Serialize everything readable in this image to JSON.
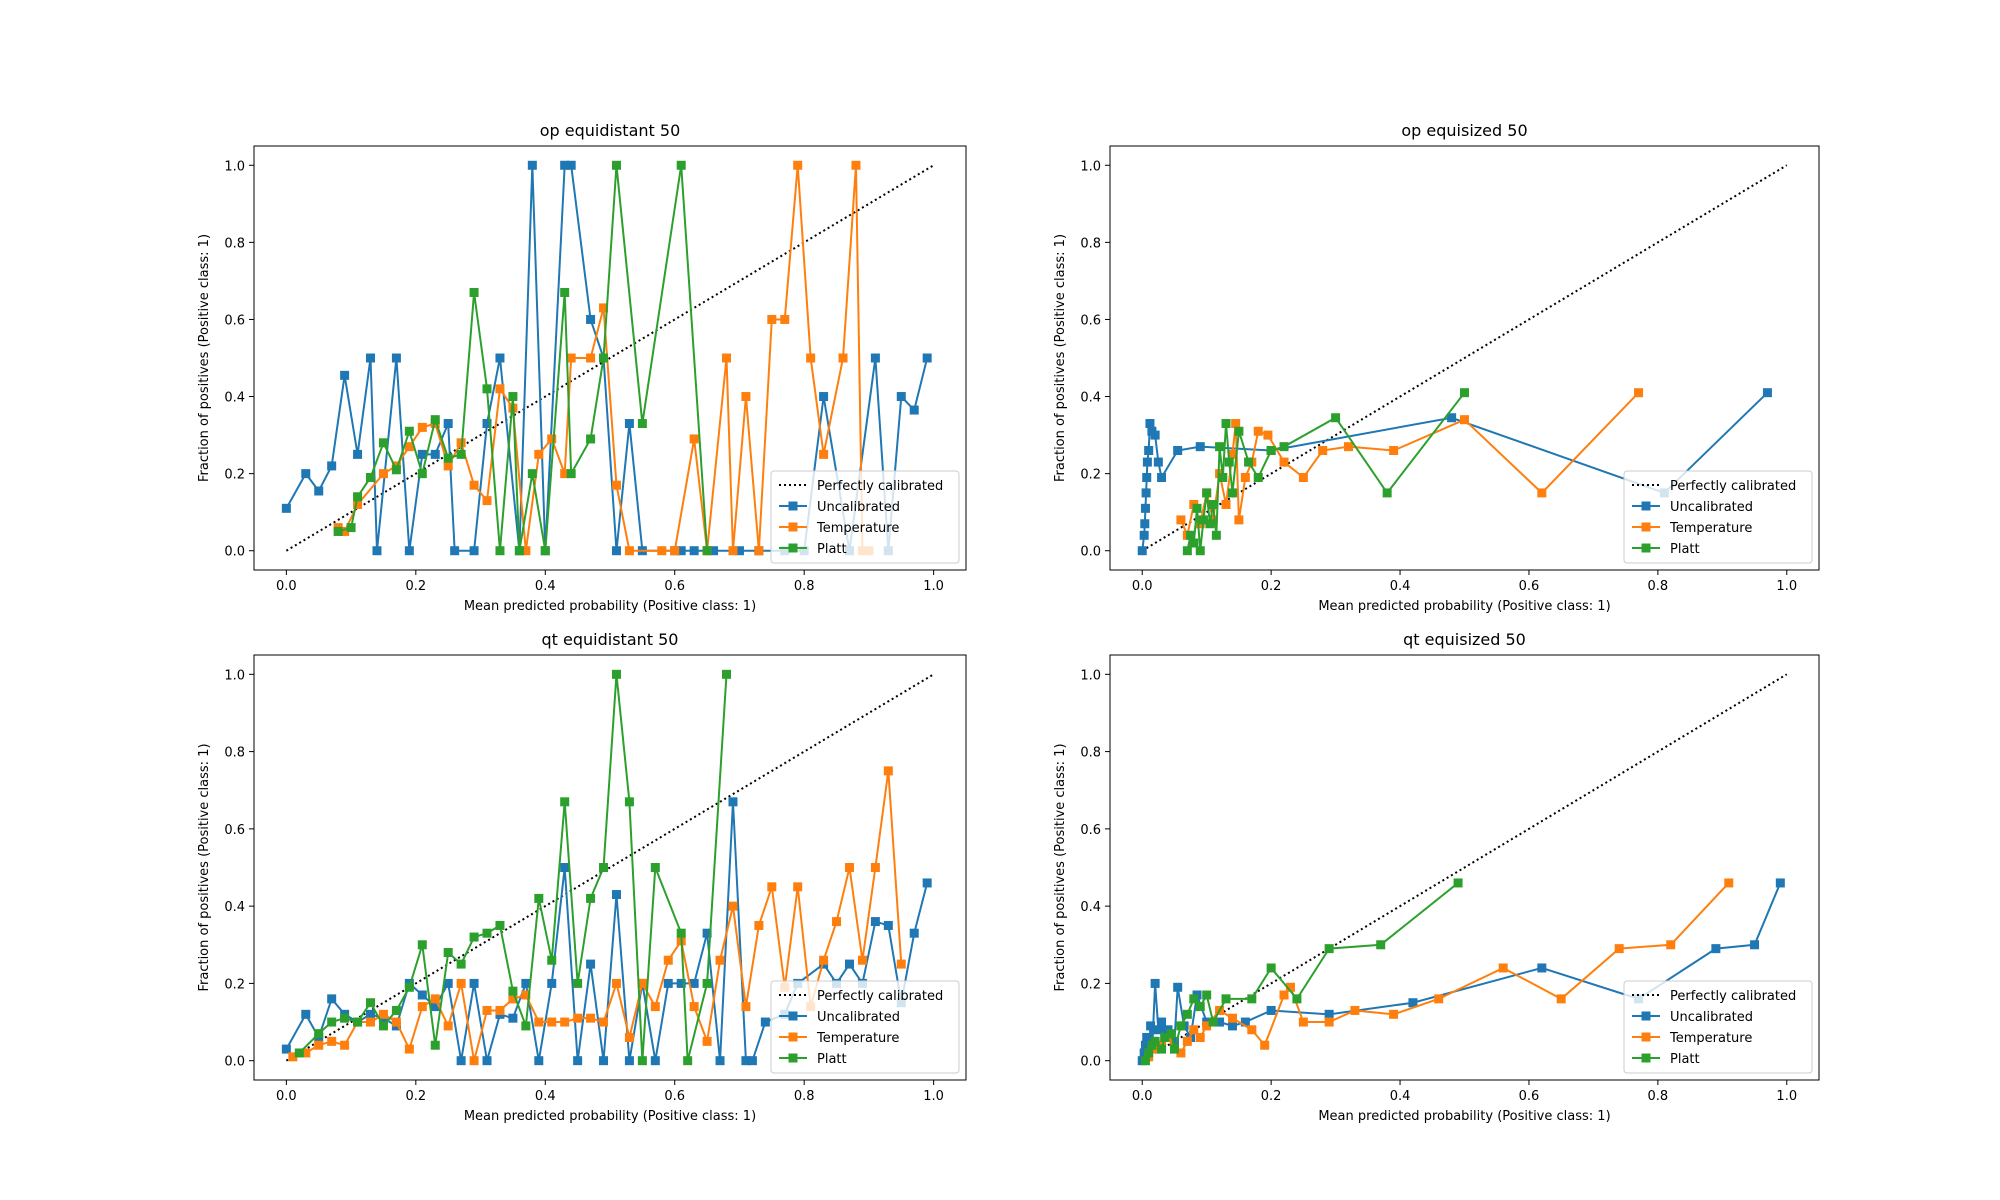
{
  "chart_data": [
    {
      "type": "line",
      "title": "op equidistant 50",
      "x_label": "Mean predicted probability (Positive class: 1)",
      "y_label": "Fraction of positives (Positive class: 1)",
      "xlim": [
        -0.05,
        1.05
      ],
      "ylim": [
        -0.05,
        1.05
      ],
      "xticks": [
        {
          "value": 0,
          "label": "0.0"
        },
        0.2,
        0.4,
        0.6,
        0.8,
        {
          "value": 1,
          "label": "1.0"
        }
      ],
      "yticks": [
        {
          "value": 0,
          "label": "0.0"
        },
        0.2,
        0.4,
        0.6,
        0.8,
        {
          "value": 1,
          "label": "1.0"
        }
      ],
      "legend": "lower right",
      "series": [
        {
          "name": "Perfectly calibrated",
          "color": "#000000",
          "linestyle": "dotted",
          "x": [
            0,
            1
          ],
          "values": [
            0,
            1
          ]
        },
        {
          "name": "Uncalibrated",
          "color": "#1f77b4",
          "marker": "square",
          "x": [
            0.0,
            0.03,
            0.05,
            0.07,
            0.09,
            0.11,
            0.13,
            0.14,
            0.17,
            0.19,
            0.21,
            0.23,
            0.25,
            0.26,
            0.29,
            0.31,
            0.33,
            0.36,
            0.38,
            0.4,
            0.43,
            0.44,
            0.47,
            0.49,
            0.51,
            0.53,
            0.55,
            0.6,
            0.61,
            0.63,
            0.66,
            0.7,
            0.73,
            0.77,
            0.8,
            0.83,
            0.87,
            0.91,
            0.93,
            0.95,
            0.97,
            0.99
          ],
          "values": [
            0.11,
            0.2,
            0.155,
            0.22,
            0.455,
            0.25,
            0.5,
            0,
            0.5,
            0,
            0.25,
            0.25,
            0.33,
            0,
            0,
            0.33,
            0.5,
            0,
            1.0,
            0,
            1.0,
            1.0,
            0.6,
            0.5,
            0,
            0.33,
            0,
            0,
            0,
            0,
            0,
            0,
            0,
            0,
            0,
            0.4,
            0,
            0.5,
            0,
            0.4,
            0.365,
            0.5
          ]
        },
        {
          "name": "Temperature",
          "color": "#ff7f0e",
          "marker": "square",
          "x": [
            0.08,
            0.09,
            0.11,
            0.15,
            0.17,
            0.19,
            0.21,
            0.23,
            0.25,
            0.27,
            0.29,
            0.31,
            0.33,
            0.35,
            0.37,
            0.39,
            0.41,
            0.43,
            0.44,
            0.47,
            0.49,
            0.51,
            0.53,
            0.58,
            0.6,
            0.63,
            0.65,
            0.68,
            0.69,
            0.71,
            0.73,
            0.75,
            0.77,
            0.79,
            0.81,
            0.83,
            0.86,
            0.88,
            0.89,
            0.9
          ],
          "values": [
            0.06,
            0.05,
            0.12,
            0.2,
            0.22,
            0.27,
            0.32,
            0.33,
            0.22,
            0.28,
            0.17,
            0.13,
            0.42,
            0.37,
            0,
            0.25,
            0.29,
            0.2,
            0.5,
            0.5,
            0.63,
            0.17,
            0,
            0,
            0,
            0.29,
            0,
            0.5,
            0,
            0.4,
            0,
            0.6,
            0.6,
            1.0,
            0.5,
            0.25,
            0.5,
            1.0,
            0,
            0
          ]
        },
        {
          "name": "Platt",
          "color": "#2ca02c",
          "marker": "square",
          "x": [
            0.08,
            0.1,
            0.11,
            0.13,
            0.15,
            0.17,
            0.19,
            0.21,
            0.23,
            0.25,
            0.27,
            0.29,
            0.31,
            0.33,
            0.35,
            0.36,
            0.38,
            0.4,
            0.43,
            0.44,
            0.47,
            0.49,
            0.51,
            0.55,
            0.61,
            0.65
          ],
          "values": [
            0.05,
            0.06,
            0.14,
            0.19,
            0.28,
            0.21,
            0.31,
            0.2,
            0.34,
            0.24,
            0.25,
            0.67,
            0.42,
            0,
            0.4,
            0,
            0.2,
            0,
            0.67,
            0.2,
            0.29,
            0.5,
            1.0,
            0.33,
            1.0,
            0
          ]
        }
      ]
    },
    {
      "type": "line",
      "title": "op equisized 50",
      "x_label": "Mean predicted probability (Positive class: 1)",
      "y_label": "Fraction of positives (Positive class: 1)",
      "xlim": [
        -0.05,
        1.05
      ],
      "ylim": [
        -0.05,
        1.05
      ],
      "xticks": [
        {
          "value": 0,
          "label": "0.0"
        },
        0.2,
        0.4,
        0.6,
        0.8,
        {
          "value": 1,
          "label": "1.0"
        }
      ],
      "yticks": [
        {
          "value": 0,
          "label": "0.0"
        },
        0.2,
        0.4,
        0.6,
        0.8,
        {
          "value": 1,
          "label": "1.0"
        }
      ],
      "legend": "lower right",
      "series": [
        {
          "name": "Perfectly calibrated",
          "color": "#000000",
          "linestyle": "dotted",
          "x": [
            0,
            1
          ],
          "values": [
            0,
            1
          ]
        },
        {
          "name": "Uncalibrated",
          "color": "#1f77b4",
          "marker": "square",
          "x": [
            0.0,
            0.003,
            0.004,
            0.005,
            0.006,
            0.007,
            0.008,
            0.01,
            0.012,
            0.015,
            0.02,
            0.025,
            0.03,
            0.055,
            0.09,
            0.2,
            0.48,
            0.81,
            0.97
          ],
          "values": [
            0,
            0.04,
            0.07,
            0.11,
            0.15,
            0.19,
            0.23,
            0.26,
            0.33,
            0.31,
            0.3,
            0.23,
            0.19,
            0.26,
            0.27,
            0.26,
            0.345,
            0.15,
            0.41
          ]
        },
        {
          "name": "Temperature",
          "color": "#ff7f0e",
          "marker": "square",
          "x": [
            0.06,
            0.07,
            0.08,
            0.09,
            0.1,
            0.11,
            0.12,
            0.13,
            0.14,
            0.145,
            0.15,
            0.16,
            0.17,
            0.18,
            0.195,
            0.22,
            0.25,
            0.28,
            0.32,
            0.39,
            0.5,
            0.62,
            0.77
          ],
          "values": [
            0.08,
            0.04,
            0.12,
            0.07,
            0.15,
            0.08,
            0.2,
            0.12,
            0.25,
            0.33,
            0.08,
            0.19,
            0.23,
            0.31,
            0.3,
            0.23,
            0.19,
            0.26,
            0.27,
            0.26,
            0.34,
            0.15,
            0.41
          ]
        },
        {
          "name": "Platt",
          "color": "#2ca02c",
          "marker": "square",
          "x": [
            0.07,
            0.075,
            0.08,
            0.085,
            0.09,
            0.095,
            0.1,
            0.105,
            0.11,
            0.115,
            0.12,
            0.125,
            0.13,
            0.135,
            0.14,
            0.15,
            0.165,
            0.18,
            0.2,
            0.22,
            0.3,
            0.38,
            0.5
          ],
          "values": [
            0,
            0.04,
            0.02,
            0.11,
            0,
            0.08,
            0.15,
            0.07,
            0.12,
            0.04,
            0.27,
            0.19,
            0.33,
            0.23,
            0.15,
            0.31,
            0.23,
            0.19,
            0.26,
            0.27,
            0.345,
            0.15,
            0.41
          ]
        }
      ]
    },
    {
      "type": "line",
      "title": "qt equidistant 50",
      "x_label": "Mean predicted probability (Positive class: 1)",
      "y_label": "Fraction of positives (Positive class: 1)",
      "xlim": [
        -0.05,
        1.05
      ],
      "ylim": [
        -0.05,
        1.05
      ],
      "xticks": [
        {
          "value": 0,
          "label": "0.0"
        },
        0.2,
        0.4,
        0.6,
        0.8,
        {
          "value": 1,
          "label": "1.0"
        }
      ],
      "yticks": [
        {
          "value": 0,
          "label": "0.0"
        },
        0.2,
        0.4,
        0.6,
        0.8,
        {
          "value": 1,
          "label": "1.0"
        }
      ],
      "legend": "lower right",
      "series": [
        {
          "name": "Perfectly calibrated",
          "color": "#000000",
          "linestyle": "dotted",
          "x": [
            0,
            1
          ],
          "values": [
            0,
            1
          ]
        },
        {
          "name": "Uncalibrated",
          "color": "#1f77b4",
          "marker": "square",
          "x": [
            0.0,
            0.03,
            0.05,
            0.07,
            0.09,
            0.11,
            0.13,
            0.15,
            0.17,
            0.19,
            0.21,
            0.23,
            0.25,
            0.27,
            0.29,
            0.31,
            0.33,
            0.35,
            0.37,
            0.39,
            0.41,
            0.43,
            0.45,
            0.47,
            0.49,
            0.51,
            0.53,
            0.55,
            0.57,
            0.59,
            0.61,
            0.63,
            0.65,
            0.67,
            0.69,
            0.71,
            0.72,
            0.74,
            0.77,
            0.79,
            0.83,
            0.85,
            0.87,
            0.89,
            0.91,
            0.93,
            0.95,
            0.97,
            0.99
          ],
          "values": [
            0.03,
            0.12,
            0.06,
            0.16,
            0.12,
            0.1,
            0.12,
            0.11,
            0.09,
            0.2,
            0.17,
            0.14,
            0.2,
            0,
            0.2,
            0,
            0.12,
            0.11,
            0.2,
            0,
            0.2,
            0.5,
            0,
            0.25,
            0,
            0.43,
            0,
            0.2,
            0,
            0.2,
            0.2,
            0.2,
            0.33,
            0,
            0.67,
            0,
            0,
            0.1,
            0.12,
            0.2,
            0.25,
            0.2,
            0.25,
            0.2,
            0.36,
            0.35,
            0.15,
            0.33,
            0.46
          ]
        },
        {
          "name": "Temperature",
          "color": "#ff7f0e",
          "marker": "square",
          "x": [
            0.01,
            0.03,
            0.05,
            0.07,
            0.09,
            0.11,
            0.13,
            0.15,
            0.17,
            0.19,
            0.21,
            0.23,
            0.25,
            0.27,
            0.29,
            0.31,
            0.33,
            0.35,
            0.37,
            0.39,
            0.41,
            0.43,
            0.45,
            0.47,
            0.49,
            0.51,
            0.53,
            0.55,
            0.57,
            0.59,
            0.61,
            0.63,
            0.65,
            0.67,
            0.69,
            0.71,
            0.73,
            0.75,
            0.77,
            0.79,
            0.81,
            0.83,
            0.85,
            0.87,
            0.89,
            0.91,
            0.93,
            0.95
          ],
          "values": [
            0.01,
            0.02,
            0.04,
            0.05,
            0.04,
            0.1,
            0.1,
            0.12,
            0.1,
            0.03,
            0.14,
            0.16,
            0.09,
            0.2,
            0,
            0.13,
            0.13,
            0.16,
            0.17,
            0.1,
            0.1,
            0.1,
            0.11,
            0.11,
            0.1,
            0.2,
            0.06,
            0.2,
            0.14,
            0.26,
            0.31,
            0.14,
            0.05,
            0.26,
            0.4,
            0.14,
            0.35,
            0.45,
            0.19,
            0.45,
            0.14,
            0.26,
            0.36,
            0.5,
            0.26,
            0.5,
            0.75,
            0.25
          ]
        },
        {
          "name": "Platt",
          "color": "#2ca02c",
          "marker": "square",
          "x": [
            0.02,
            0.05,
            0.07,
            0.09,
            0.11,
            0.13,
            0.15,
            0.17,
            0.19,
            0.21,
            0.23,
            0.25,
            0.27,
            0.29,
            0.31,
            0.33,
            0.35,
            0.37,
            0.39,
            0.41,
            0.43,
            0.45,
            0.47,
            0.49,
            0.51,
            0.53,
            0.55,
            0.57,
            0.61,
            0.62,
            0.65,
            0.68
          ],
          "values": [
            0.02,
            0.07,
            0.1,
            0.11,
            0.1,
            0.15,
            0.09,
            0.13,
            0.19,
            0.3,
            0.04,
            0.28,
            0.25,
            0.32,
            0.33,
            0.35,
            0.18,
            0.09,
            0.42,
            0.26,
            0.67,
            0.2,
            0.42,
            0.5,
            1.0,
            0.67,
            0,
            0.5,
            0.33,
            0,
            0.2,
            1.0
          ]
        }
      ]
    },
    {
      "type": "line",
      "title": "qt equisized 50",
      "x_label": "Mean predicted probability (Positive class: 1)",
      "y_label": "Fraction of positives (Positive class: 1)",
      "xlim": [
        -0.05,
        1.05
      ],
      "ylim": [
        -0.05,
        1.05
      ],
      "xticks": [
        {
          "value": 0,
          "label": "0.0"
        },
        0.2,
        0.4,
        0.6,
        0.8,
        {
          "value": 1,
          "label": "1.0"
        }
      ],
      "yticks": [
        {
          "value": 0,
          "label": "0.0"
        },
        0.2,
        0.4,
        0.6,
        0.8,
        {
          "value": 1,
          "label": "1.0"
        }
      ],
      "legend": "lower right",
      "series": [
        {
          "name": "Perfectly calibrated",
          "color": "#000000",
          "linestyle": "dotted",
          "x": [
            0,
            1
          ],
          "values": [
            0,
            1
          ]
        },
        {
          "name": "Uncalibrated",
          "color": "#1f77b4",
          "marker": "square",
          "x": [
            0.0,
            0.003,
            0.005,
            0.007,
            0.01,
            0.013,
            0.016,
            0.02,
            0.025,
            0.03,
            0.035,
            0.04,
            0.05,
            0.055,
            0.065,
            0.075,
            0.085,
            0.1,
            0.12,
            0.14,
            0.16,
            0.2,
            0.29,
            0.42,
            0.62,
            0.77,
            0.89,
            0.95,
            0.99
          ],
          "values": [
            0,
            0.02,
            0.04,
            0.06,
            0.03,
            0.09,
            0.05,
            0.2,
            0.08,
            0.1,
            0.06,
            0.08,
            0.05,
            0.19,
            0.09,
            0.06,
            0.17,
            0.1,
            0.1,
            0.09,
            0.1,
            0.13,
            0.12,
            0.15,
            0.24,
            0.16,
            0.29,
            0.3,
            0.46
          ]
        },
        {
          "name": "Temperature",
          "color": "#ff7f0e",
          "marker": "square",
          "x": [
            0.01,
            0.02,
            0.03,
            0.04,
            0.05,
            0.06,
            0.07,
            0.08,
            0.09,
            0.1,
            0.12,
            0.14,
            0.17,
            0.19,
            0.22,
            0.23,
            0.25,
            0.29,
            0.33,
            0.39,
            0.46,
            0.56,
            0.65,
            0.74,
            0.82,
            0.91
          ],
          "values": [
            0.01,
            0.03,
            0.04,
            0.06,
            0.03,
            0.02,
            0.05,
            0.08,
            0.06,
            0.09,
            0.13,
            0.11,
            0.08,
            0.04,
            0.17,
            0.19,
            0.1,
            0.1,
            0.13,
            0.12,
            0.16,
            0.24,
            0.16,
            0.29,
            0.3,
            0.46
          ]
        },
        {
          "name": "Platt",
          "color": "#2ca02c",
          "marker": "square",
          "x": [
            0.005,
            0.01,
            0.015,
            0.02,
            0.03,
            0.035,
            0.045,
            0.05,
            0.06,
            0.07,
            0.08,
            0.09,
            0.1,
            0.11,
            0.13,
            0.17,
            0.2,
            0.24,
            0.29,
            0.37,
            0.49
          ],
          "values": [
            0,
            0.02,
            0.04,
            0.05,
            0.03,
            0.06,
            0.07,
            0.03,
            0.09,
            0.12,
            0.16,
            0.14,
            0.17,
            0.1,
            0.16,
            0.16,
            0.24,
            0.16,
            0.29,
            0.3,
            0.46
          ]
        }
      ]
    }
  ]
}
